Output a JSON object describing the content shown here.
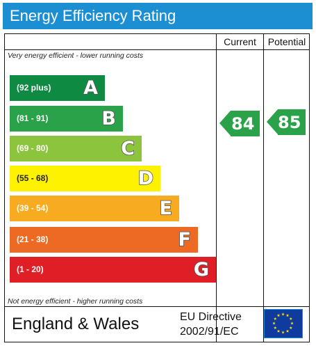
{
  "title": "Energy Efficiency Rating",
  "columns": {
    "current": "Current",
    "potential": "Potential"
  },
  "notes": {
    "top": "Very energy efficient - lower running costs",
    "bottom": "Not energy efficient - higher running costs"
  },
  "bands": [
    {
      "range": "(92 plus)",
      "letter": "A",
      "color": "#0f8a43"
    },
    {
      "range": "(81 - 91)",
      "letter": "B",
      "color": "#2aa24a"
    },
    {
      "range": "(69 - 80)",
      "letter": "C",
      "color": "#8dc43e"
    },
    {
      "range": "(55 - 68)",
      "letter": "D",
      "color": "#fff200"
    },
    {
      "range": "(39 - 54)",
      "letter": "E",
      "color": "#f7ab20"
    },
    {
      "range": "(21 - 38)",
      "letter": "F",
      "color": "#ec6a23"
    },
    {
      "range": "(1 - 20)",
      "letter": "G",
      "color": "#e01e26"
    }
  ],
  "current_rating": {
    "value": "84",
    "color": "#2aa24a"
  },
  "potential_rating": {
    "value": "85",
    "color": "#2aa24a"
  },
  "footer": {
    "region": "England & Wales",
    "directive_line1": "EU Directive",
    "directive_line2": "2002/91/EC"
  },
  "eu_flag": {
    "icon": "eu-flag-icon",
    "background": "#0f3a9e",
    "star_color": "#ffdd00"
  }
}
